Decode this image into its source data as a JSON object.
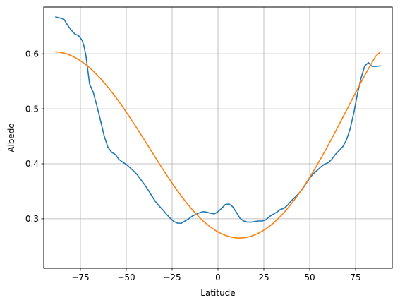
{
  "chart_data": {
    "type": "line",
    "title": "",
    "xlabel": "Latitude",
    "ylabel": "Albedo",
    "xlim": [
      -95,
      95
    ],
    "ylim": [
      0.21,
      0.685
    ],
    "xticks": [
      -75,
      -50,
      -25,
      0,
      25,
      50,
      75
    ],
    "xtick_labels": [
      "−75",
      "−50",
      "−25",
      "0",
      "25",
      "50",
      "75"
    ],
    "yticks": [
      0.3,
      0.4,
      0.5,
      0.6
    ],
    "ytick_labels": [
      "0.3",
      "0.4",
      "0.5",
      "0.6"
    ],
    "grid": true,
    "series": [
      {
        "color": "#1f77b4",
        "x": [
          -88.5,
          -86,
          -84,
          -82,
          -80,
          -78,
          -76,
          -74,
          -73,
          -72,
          -70,
          -68,
          -66,
          -64,
          -62,
          -60,
          -58,
          -56,
          -54,
          -52,
          -50,
          -48,
          -46,
          -44,
          -42,
          -40,
          -38,
          -36,
          -34,
          -32,
          -30,
          -28,
          -26,
          -24,
          -22,
          -20,
          -18,
          -16,
          -14,
          -12,
          -10,
          -8,
          -6,
          -4,
          -2,
          0,
          2,
          4,
          6,
          8,
          10,
          12,
          14,
          16,
          18,
          20,
          22,
          24,
          26,
          28,
          30,
          32,
          34,
          36,
          38,
          40,
          42,
          44,
          46,
          48,
          50,
          52,
          54,
          56,
          58,
          60,
          62,
          64,
          66,
          68,
          70,
          72,
          74,
          76,
          78,
          80,
          82,
          84,
          86,
          88.5
        ],
        "y": [
          0.667,
          0.665,
          0.663,
          0.652,
          0.643,
          0.636,
          0.633,
          0.624,
          0.613,
          0.597,
          0.545,
          0.53,
          0.505,
          0.478,
          0.45,
          0.43,
          0.421,
          0.417,
          0.408,
          0.403,
          0.399,
          0.393,
          0.387,
          0.38,
          0.371,
          0.362,
          0.352,
          0.341,
          0.331,
          0.323,
          0.316,
          0.308,
          0.301,
          0.295,
          0.292,
          0.292,
          0.296,
          0.3,
          0.305,
          0.308,
          0.311,
          0.313,
          0.312,
          0.31,
          0.309,
          0.313,
          0.319,
          0.326,
          0.327,
          0.322,
          0.312,
          0.301,
          0.296,
          0.294,
          0.294,
          0.295,
          0.296,
          0.296,
          0.298,
          0.304,
          0.308,
          0.312,
          0.317,
          0.319,
          0.325,
          0.333,
          0.339,
          0.346,
          0.354,
          0.364,
          0.374,
          0.382,
          0.388,
          0.394,
          0.399,
          0.402,
          0.408,
          0.417,
          0.424,
          0.431,
          0.443,
          0.463,
          0.492,
          0.527,
          0.556,
          0.578,
          0.584,
          0.577,
          0.577,
          0.578
        ]
      },
      {
        "color": "#ff7f0e",
        "x": [
          -88.5,
          -86,
          -84,
          -82,
          -80,
          -78,
          -76,
          -74,
          -72,
          -70,
          -68,
          -66,
          -64,
          -62,
          -60,
          -58,
          -56,
          -54,
          -52,
          -50,
          -48,
          -46,
          -44,
          -42,
          -40,
          -38,
          -36,
          -34,
          -32,
          -30,
          -28,
          -26,
          -24,
          -22,
          -20,
          -18,
          -16,
          -14,
          -12,
          -10,
          -8,
          -6,
          -4,
          -2,
          0,
          2,
          4,
          6,
          8,
          10,
          12,
          14,
          16,
          18,
          20,
          22,
          24,
          26,
          28,
          30,
          32,
          34,
          36,
          38,
          40,
          42,
          44,
          46,
          48,
          50,
          52,
          54,
          56,
          58,
          60,
          62,
          64,
          66,
          68,
          70,
          72,
          74,
          76,
          78,
          80,
          82,
          84,
          86,
          88.5
        ],
        "y": [
          0.6036,
          0.6028,
          0.6013,
          0.5993,
          0.5966,
          0.5933,
          0.5895,
          0.5851,
          0.5801,
          0.5745,
          0.5685,
          0.5619,
          0.5548,
          0.5473,
          0.5393,
          0.531,
          0.5222,
          0.5131,
          0.5037,
          0.494,
          0.484,
          0.4739,
          0.4636,
          0.4531,
          0.4426,
          0.432,
          0.4214,
          0.4108,
          0.4003,
          0.3899,
          0.3797,
          0.3697,
          0.36,
          0.3506,
          0.3415,
          0.3327,
          0.3244,
          0.3165,
          0.3091,
          0.3022,
          0.2958,
          0.29,
          0.2848,
          0.2801,
          0.2761,
          0.2727,
          0.2699,
          0.2677,
          0.2662,
          0.2653,
          0.2651,
          0.2655,
          0.2666,
          0.2683,
          0.2707,
          0.2737,
          0.2773,
          0.2815,
          0.2863,
          0.2917,
          0.2977,
          0.3043,
          0.3114,
          0.3191,
          0.3273,
          0.336,
          0.3452,
          0.3549,
          0.365,
          0.3755,
          0.3864,
          0.3977,
          0.4093,
          0.4212,
          0.4334,
          0.4458,
          0.4584,
          0.4712,
          0.4841,
          0.497,
          0.5099,
          0.5228,
          0.5356,
          0.5482,
          0.5606,
          0.5727,
          0.5844,
          0.5957,
          0.6036
        ]
      }
    ]
  }
}
